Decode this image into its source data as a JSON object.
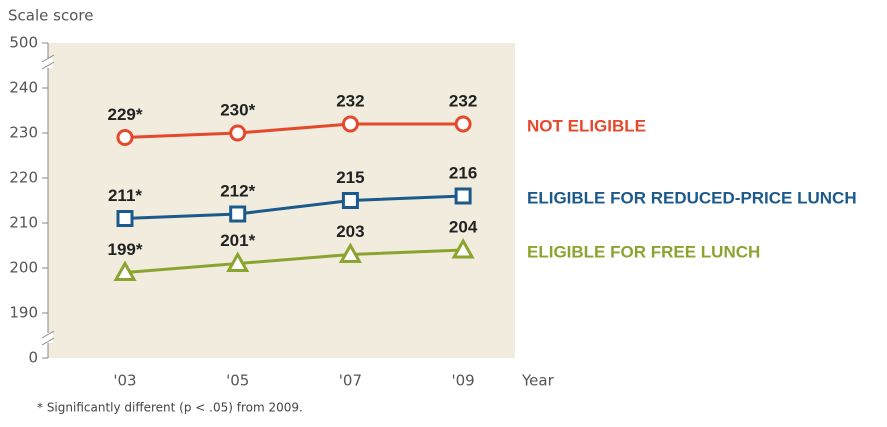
{
  "chart_data": {
    "type": "line",
    "y_axis_label": "Scale score",
    "x_axis_label": "Year",
    "footnote": "* Significantly different (p < .05) from 2009.",
    "categories": [
      "'03",
      "'05",
      "'07",
      "'09"
    ],
    "ylim": [
      0,
      500
    ],
    "yticks": [
      0,
      190,
      200,
      210,
      220,
      230,
      240,
      500
    ],
    "axis_break": true,
    "series": [
      {
        "name": "NOT ELIGIBLE",
        "color": "#e5492c",
        "marker": "circle",
        "values": [
          229,
          230,
          232,
          232
        ],
        "value_labels": [
          "229*",
          "230*",
          "232",
          "232"
        ]
      },
      {
        "name": "ELIGIBLE FOR REDUCED-PRICE LUNCH",
        "color": "#1d5a8c",
        "marker": "square",
        "values": [
          211,
          212,
          215,
          216
        ],
        "value_labels": [
          "211*",
          "212*",
          "215",
          "216"
        ]
      },
      {
        "name": "ELIGIBLE FOR FREE LUNCH",
        "color": "#8ba42f",
        "marker": "triangle",
        "values": [
          199,
          201,
          203,
          204
        ],
        "value_labels": [
          "199*",
          "201*",
          "203",
          "204"
        ]
      }
    ]
  }
}
